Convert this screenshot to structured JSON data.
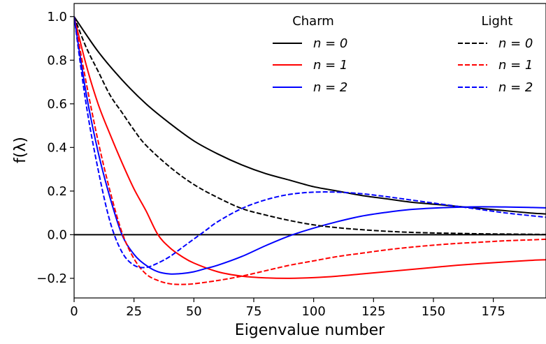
{
  "chart_data": {
    "type": "line",
    "xlabel": "Eigenvalue number",
    "ylabel": "f(λ)",
    "xlim": [
      0,
      197
    ],
    "ylim": [
      -0.29,
      1.06
    ],
    "x_ticks": [
      0,
      25,
      50,
      75,
      100,
      125,
      150,
      175
    ],
    "x_tick_labels": [
      "0",
      "25",
      "50",
      "75",
      "100",
      "125",
      "150",
      "175"
    ],
    "y_ticks": [
      -0.2,
      0.0,
      0.2,
      0.4,
      0.6,
      0.8,
      1.0
    ],
    "y_tick_labels": [
      "−0.2",
      "0.0",
      "0.2",
      "0.4",
      "0.6",
      "0.8",
      "1.0"
    ],
    "grid": false,
    "reference_line_y": 0.0,
    "legend": {
      "placement": "top-right",
      "groups": [
        {
          "title": "Charm",
          "entries": [
            "n = 0",
            "n = 1",
            "n = 2"
          ]
        },
        {
          "title": "Light",
          "entries": [
            "n = 0",
            "n = 1",
            "n = 2"
          ]
        }
      ]
    },
    "colors": {
      "n0": "#000000",
      "n1": "#ff0000",
      "n2": "#0000ff"
    },
    "series": [
      {
        "group": "Charm",
        "label": "n = 0",
        "color": "#000000",
        "dash": "solid",
        "x": [
          0,
          10,
          20,
          30,
          40,
          50,
          60,
          70,
          80,
          90,
          100,
          110,
          120,
          130,
          140,
          150,
          160,
          170,
          180,
          190,
          197
        ],
        "y": [
          1.0,
          0.84,
          0.71,
          0.6,
          0.51,
          0.43,
          0.37,
          0.32,
          0.28,
          0.25,
          0.22,
          0.2,
          0.18,
          0.165,
          0.15,
          0.14,
          0.13,
          0.12,
          0.11,
          0.1,
          0.095
        ]
      },
      {
        "group": "Charm",
        "label": "n = 1",
        "color": "#ff0000",
        "dash": "solid",
        "x": [
          0,
          5,
          10,
          15,
          20,
          25,
          30,
          35,
          40,
          45,
          50,
          60,
          70,
          80,
          90,
          100,
          110,
          120,
          130,
          140,
          150,
          160,
          170,
          180,
          190,
          197
        ],
        "y": [
          1.0,
          0.78,
          0.6,
          0.46,
          0.33,
          0.21,
          0.11,
          0.0,
          -0.06,
          -0.1,
          -0.13,
          -0.17,
          -0.19,
          -0.198,
          -0.2,
          -0.197,
          -0.19,
          -0.18,
          -0.17,
          -0.16,
          -0.15,
          -0.14,
          -0.132,
          -0.125,
          -0.118,
          -0.115
        ]
      },
      {
        "group": "Charm",
        "label": "n = 2",
        "color": "#0000ff",
        "dash": "solid",
        "x": [
          0,
          5,
          10,
          15,
          20,
          25,
          30,
          35,
          40,
          45,
          50,
          55,
          60,
          70,
          80,
          90,
          100,
          110,
          120,
          130,
          140,
          150,
          160,
          170,
          180,
          190,
          197
        ],
        "y": [
          1.0,
          0.65,
          0.38,
          0.17,
          0.0,
          -0.09,
          -0.14,
          -0.17,
          -0.18,
          -0.178,
          -0.17,
          -0.155,
          -0.14,
          -0.1,
          -0.05,
          -0.005,
          0.03,
          0.06,
          0.085,
          0.102,
          0.115,
          0.122,
          0.126,
          0.128,
          0.127,
          0.125,
          0.123
        ]
      },
      {
        "group": "Light",
        "label": "n = 0",
        "color": "#000000",
        "dash": "dashed",
        "x": [
          0,
          5,
          10,
          15,
          20,
          25,
          30,
          40,
          50,
          60,
          70,
          80,
          90,
          100,
          110,
          120,
          130,
          140,
          150,
          160,
          170,
          180,
          190,
          197
        ],
        "y": [
          1.0,
          0.86,
          0.75,
          0.64,
          0.56,
          0.48,
          0.41,
          0.31,
          0.23,
          0.17,
          0.12,
          0.09,
          0.065,
          0.045,
          0.032,
          0.023,
          0.016,
          0.011,
          0.008,
          0.006,
          0.004,
          0.003,
          0.002,
          0.001
        ]
      },
      {
        "group": "Light",
        "label": "n = 1",
        "color": "#ff0000",
        "dash": "dashed",
        "x": [
          0,
          5,
          10,
          15,
          20,
          25,
          30,
          35,
          40,
          45,
          50,
          60,
          70,
          80,
          90,
          100,
          110,
          120,
          130,
          140,
          150,
          160,
          170,
          180,
          190,
          197
        ],
        "y": [
          1.0,
          0.7,
          0.43,
          0.2,
          0.01,
          -0.11,
          -0.18,
          -0.21,
          -0.225,
          -0.228,
          -0.225,
          -0.21,
          -0.19,
          -0.165,
          -0.14,
          -0.12,
          -0.1,
          -0.085,
          -0.07,
          -0.058,
          -0.048,
          -0.04,
          -0.034,
          -0.028,
          -0.024,
          -0.021
        ]
      },
      {
        "group": "Light",
        "label": "n = 2",
        "color": "#0000ff",
        "dash": "dashed",
        "x": [
          0,
          5,
          10,
          15,
          20,
          25,
          30,
          35,
          40,
          45,
          50,
          55,
          60,
          70,
          80,
          90,
          100,
          110,
          120,
          130,
          140,
          150,
          160,
          170,
          180,
          190,
          197
        ],
        "y": [
          1.0,
          0.6,
          0.3,
          0.06,
          -0.08,
          -0.14,
          -0.15,
          -0.13,
          -0.1,
          -0.06,
          -0.02,
          0.02,
          0.06,
          0.12,
          0.16,
          0.185,
          0.195,
          0.195,
          0.188,
          0.175,
          0.16,
          0.145,
          0.13,
          0.115,
          0.1,
          0.088,
          0.08
        ]
      }
    ]
  }
}
